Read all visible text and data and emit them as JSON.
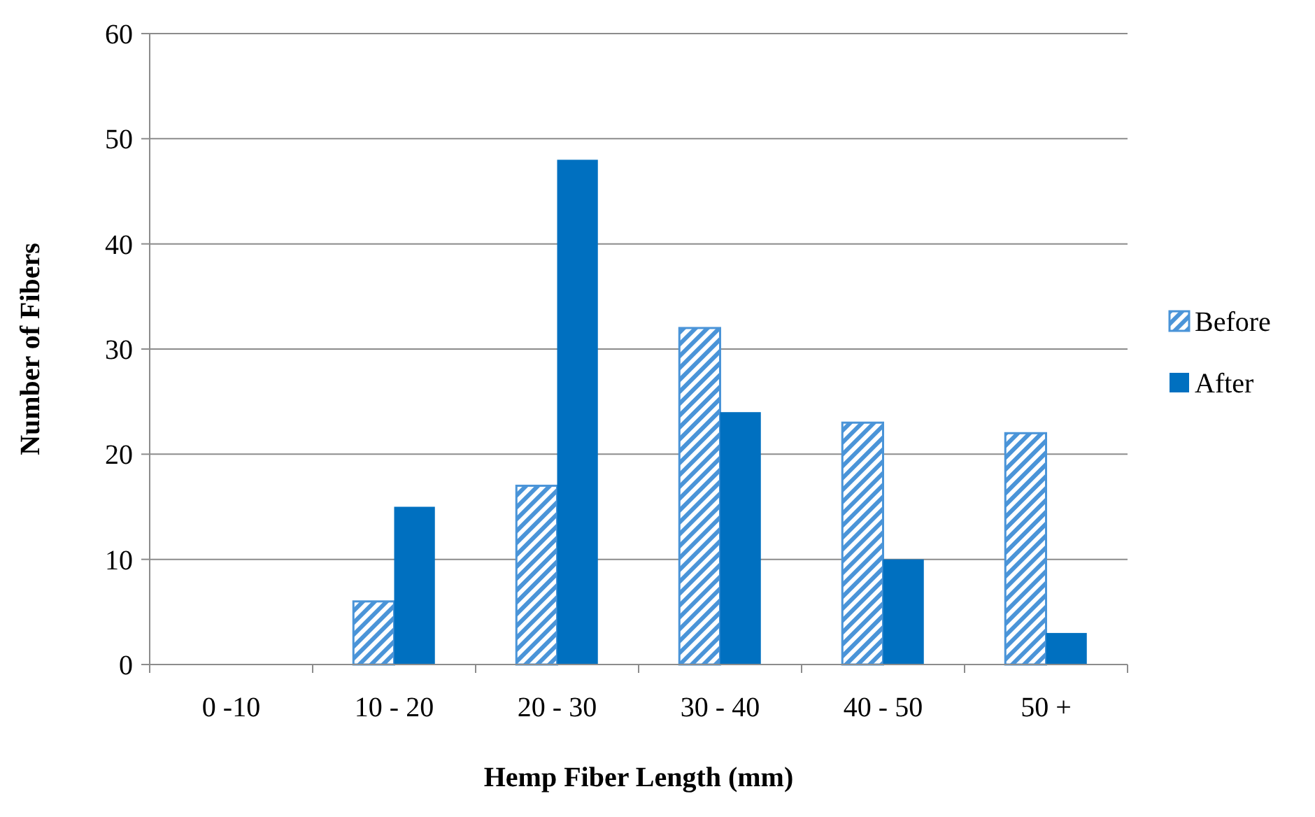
{
  "chart_data": {
    "type": "bar",
    "xlabel": "Hemp Fiber Length (mm)",
    "ylabel": "Number of Fibers",
    "categories": [
      "0 -10",
      "10 - 20",
      "20 - 30",
      "30 - 40",
      "40 - 50",
      "50 +"
    ],
    "series": [
      {
        "name": "Before",
        "color": "#4a94d8",
        "values": [
          0,
          6,
          17,
          32,
          23,
          22
        ]
      },
      {
        "name": "After",
        "color": "#0070c0",
        "values": [
          0,
          15,
          48,
          24,
          10,
          3
        ]
      }
    ],
    "ylim": [
      0,
      60
    ],
    "yticks": [
      0,
      10,
      20,
      30,
      40,
      50,
      60
    ],
    "grid": "y",
    "legend": "right"
  }
}
